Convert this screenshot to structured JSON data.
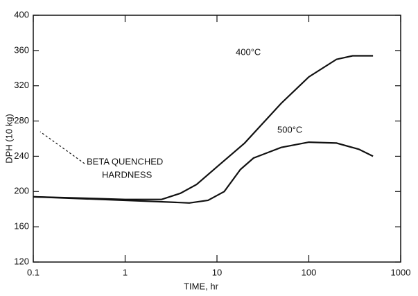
{
  "chart_data": {
    "type": "line",
    "xlabel": "TIME, hr",
    "ylabel": "DPH (10 kg)",
    "xscale": "log",
    "xlim": [
      0.1,
      1000
    ],
    "xticks": [
      0.1,
      1,
      10,
      100,
      1000
    ],
    "ylim": [
      120,
      400
    ],
    "yticks": [
      120,
      160,
      200,
      240,
      280,
      320,
      360,
      400
    ],
    "annotation": [
      "BETA QUENCHED",
      "HARDNESS"
    ],
    "series": [
      {
        "name": "400°C",
        "color": "#111111",
        "x": [
          0.1,
          0.5,
          1,
          2.5,
          4,
          6,
          10,
          20,
          50,
          100,
          200,
          300,
          500
        ],
        "values": [
          194,
          192,
          191,
          191,
          198,
          208,
          228,
          255,
          300,
          330,
          350,
          354,
          354
        ]
      },
      {
        "name": "500°C",
        "color": "#111111",
        "x": [
          0.1,
          1,
          3,
          5,
          8,
          12,
          18,
          25,
          50,
          100,
          200,
          350,
          500
        ],
        "values": [
          194,
          190,
          188,
          187,
          190,
          200,
          225,
          238,
          250,
          256,
          255,
          248,
          240
        ]
      }
    ]
  }
}
